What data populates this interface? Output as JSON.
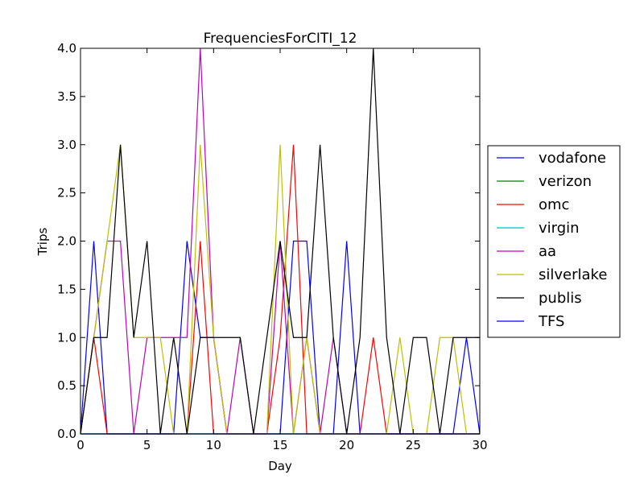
{
  "chart_data": {
    "type": "line",
    "title": "FrequenciesForCITI_12",
    "xlabel": "Day",
    "ylabel": "Trips",
    "xlim": [
      0,
      30
    ],
    "ylim": [
      0,
      4
    ],
    "x_ticks": [
      "0",
      "5",
      "10",
      "15",
      "20",
      "25",
      "30"
    ],
    "y_ticks": [
      "0.0",
      "0.5",
      "1.0",
      "1.5",
      "2.0",
      "2.5",
      "3.0",
      "3.5",
      "4.0"
    ],
    "grid": false,
    "legend_position": "outside-right",
    "x": [
      0,
      1,
      2,
      3,
      4,
      5,
      6,
      7,
      8,
      9,
      10,
      11,
      12,
      13,
      14,
      15,
      16,
      17,
      18,
      19,
      20,
      21,
      22,
      23,
      24,
      25,
      26,
      27,
      28,
      29,
      30
    ],
    "series": [
      {
        "name": "vodafone",
        "color": "#0000ff",
        "values": [
          0,
          2,
          0,
          0,
          0,
          0,
          0,
          0,
          2,
          1,
          1,
          0,
          0,
          0,
          0,
          0,
          2,
          2,
          0,
          0,
          2,
          0,
          0,
          0,
          0,
          0,
          0,
          0,
          0,
          1,
          0
        ]
      },
      {
        "name": "verizon",
        "color": "#008000",
        "values": [
          0,
          0,
          0,
          0,
          0,
          0,
          0,
          0,
          0,
          0,
          0,
          0,
          0,
          0,
          0,
          0,
          0,
          0,
          0,
          0,
          0,
          0,
          0,
          0,
          0,
          0,
          0,
          0,
          0,
          0,
          0
        ]
      },
      {
        "name": "omc",
        "color": "#ff0000",
        "values": [
          0,
          1,
          0,
          0,
          0,
          0,
          0,
          0,
          0,
          2,
          0,
          0,
          0,
          0,
          0,
          1,
          3,
          0,
          0,
          0,
          0,
          0,
          1,
          0,
          0,
          0,
          0,
          0,
          0,
          0,
          0
        ]
      },
      {
        "name": "virgin",
        "color": "#00bfbf",
        "values": [
          0,
          0,
          0,
          0,
          0,
          0,
          0,
          0,
          0,
          0,
          0,
          0,
          0,
          0,
          0,
          0,
          0,
          0,
          0,
          0,
          0,
          0,
          0,
          0,
          0,
          0,
          0,
          0,
          0,
          0,
          0
        ]
      },
      {
        "name": "aa",
        "color": "#bf00bf",
        "values": [
          0,
          1,
          2,
          2,
          0,
          1,
          1,
          1,
          1,
          4,
          1,
          0,
          1,
          0,
          0,
          2,
          0,
          1,
          0,
          1,
          0,
          0,
          0,
          0,
          0,
          0,
          0,
          0,
          0,
          0,
          0
        ]
      },
      {
        "name": "silverlake",
        "color": "#bfbf00",
        "values": [
          0,
          1,
          2,
          3,
          1,
          1,
          1,
          0,
          0,
          3,
          1,
          0,
          0,
          0,
          0,
          3,
          0,
          1,
          0,
          0,
          0,
          0,
          0,
          0,
          1,
          0,
          0,
          1,
          1,
          0,
          0
        ]
      },
      {
        "name": "publis",
        "color": "#000000",
        "values": [
          0,
          1,
          1,
          3,
          1,
          2,
          0,
          1,
          0,
          1,
          1,
          1,
          1,
          0,
          1,
          2,
          1,
          1,
          3,
          1,
          0,
          1,
          4,
          1,
          0,
          1,
          1,
          0,
          1,
          1,
          1
        ]
      },
      {
        "name": "TFS",
        "color": "#0000ff",
        "values": [
          0,
          0,
          0,
          0,
          0,
          0,
          0,
          0,
          0,
          0,
          0,
          0,
          0,
          0,
          0,
          0,
          0,
          0,
          0,
          0,
          0,
          0,
          0,
          0,
          0,
          0,
          0,
          0,
          0,
          0,
          0
        ]
      }
    ]
  }
}
